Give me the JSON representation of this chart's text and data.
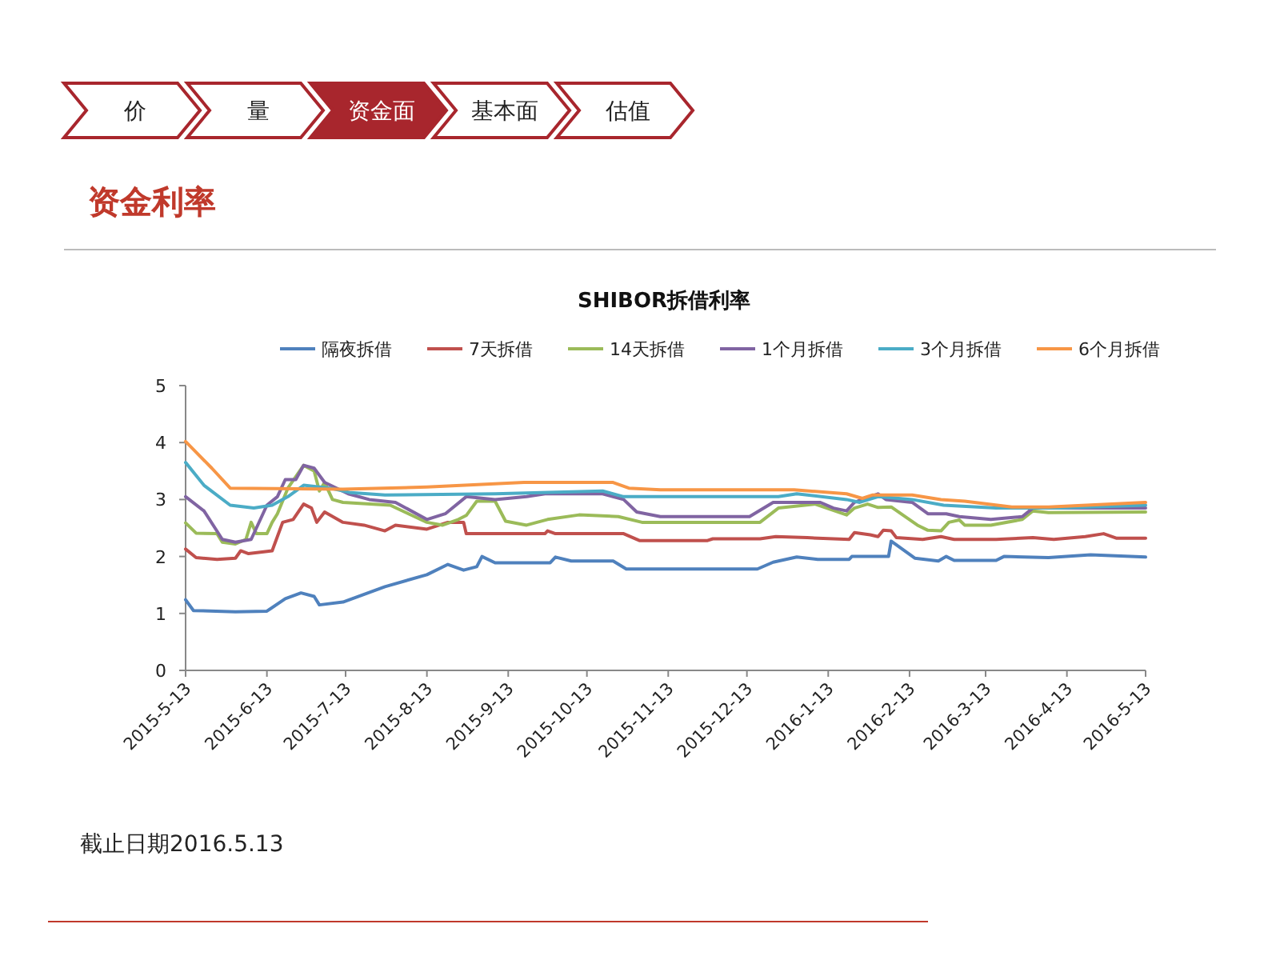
{
  "chart_data": {
    "type": "line",
    "title": "SHIBOR拆借利率",
    "annotations": [
      "价",
      "量",
      "资金面",
      "基本面",
      "估值",
      "资金利率",
      "截止日期2016.5.13"
    ],
    "xlim": [
      "2015-05-13",
      "2016-05-13"
    ],
    "xticks": [
      {
        "value": "2015-05-13",
        "label": "2015-5-13"
      },
      {
        "value": "2015-06-13",
        "label": "2015-6-13"
      },
      {
        "value": "2015-07-13",
        "label": "2015-7-13"
      },
      {
        "value": "2015-08-13",
        "label": "2015-8-13"
      },
      {
        "value": "2015-09-13",
        "label": "2015-9-13"
      },
      {
        "value": "2015-10-13",
        "label": "2015-10-13"
      },
      {
        "value": "2015-11-13",
        "label": "2015-11-13"
      },
      {
        "value": "2015-12-13",
        "label": "2015-12-13"
      },
      {
        "value": "2016-01-13",
        "label": "2016-1-13"
      },
      {
        "value": "2016-02-13",
        "label": "2016-2-13"
      },
      {
        "value": "2016-03-13",
        "label": "2016-3-13"
      },
      {
        "value": "2016-04-13",
        "label": "2016-4-13"
      },
      {
        "value": "2016-05-13",
        "label": "2016-5-13"
      }
    ],
    "ylim": [
      0,
      5
    ],
    "yticks": [
      0,
      1,
      2,
      3,
      4,
      5
    ],
    "grid": false,
    "legend": "top",
    "marker": "none",
    "line_style": "solid",
    "series": [
      {
        "name": "隔夜拆借",
        "color": "#4f81bd",
        "x": [
          "2015-05-13",
          "2015-05-16",
          "2015-06-01",
          "2015-06-13",
          "2015-06-20",
          "2015-06-26",
          "2015-07-01",
          "2015-07-03",
          "2015-07-12",
          "2015-07-28",
          "2015-08-13",
          "2015-08-21",
          "2015-08-27",
          "2015-09-01",
          "2015-09-03",
          "2015-09-08",
          "2015-09-29",
          "2015-10-01",
          "2015-10-07",
          "2015-10-23",
          "2015-10-28",
          "2015-12-17",
          "2015-12-23",
          "2016-01-01",
          "2016-01-09",
          "2016-01-21",
          "2016-01-22",
          "2016-02-05",
          "2016-02-06",
          "2016-02-15",
          "2016-02-24",
          "2016-02-27",
          "2016-03-01",
          "2016-03-17",
          "2016-03-20",
          "2016-04-06",
          "2016-04-22",
          "2016-05-13"
        ],
        "values": [
          1.24,
          1.05,
          1.03,
          1.04,
          1.26,
          1.36,
          1.3,
          1.15,
          1.2,
          1.47,
          1.68,
          1.86,
          1.76,
          1.82,
          2.0,
          1.89,
          1.89,
          1.99,
          1.92,
          1.92,
          1.78,
          1.78,
          1.9,
          1.99,
          1.95,
          1.95,
          2.0,
          2.0,
          2.27,
          1.97,
          1.92,
          2.0,
          1.93,
          1.93,
          2.0,
          1.98,
          2.03,
          1.99
        ]
      },
      {
        "name": "7天拆借",
        "color": "#c0504d",
        "x": [
          "2015-05-13",
          "2015-05-17",
          "2015-05-25",
          "2015-06-01",
          "2015-06-03",
          "2015-06-06",
          "2015-06-15",
          "2015-06-19",
          "2015-06-23",
          "2015-06-27",
          "2015-06-30",
          "2015-07-02",
          "2015-07-05",
          "2015-07-12",
          "2015-07-20",
          "2015-07-28",
          "2015-08-01",
          "2015-08-13",
          "2015-08-21",
          "2015-08-27",
          "2015-08-28",
          "2015-09-27",
          "2015-09-28",
          "2015-10-01",
          "2015-10-27",
          "2015-11-02",
          "2015-11-28",
          "2015-11-30",
          "2015-12-18",
          "2015-12-24",
          "2016-01-05",
          "2016-01-21",
          "2016-01-23",
          "2016-01-29",
          "2016-02-01",
          "2016-02-03",
          "2016-02-06",
          "2016-02-08",
          "2016-02-18",
          "2016-02-25",
          "2016-03-01",
          "2016-03-17",
          "2016-03-31",
          "2016-04-08",
          "2016-04-20",
          "2016-04-27",
          "2016-05-02",
          "2016-05-13"
        ],
        "values": [
          2.13,
          1.98,
          1.95,
          1.97,
          2.1,
          2.05,
          2.1,
          2.6,
          2.65,
          2.92,
          2.85,
          2.6,
          2.78,
          2.6,
          2.55,
          2.45,
          2.55,
          2.48,
          2.6,
          2.6,
          2.4,
          2.4,
          2.45,
          2.4,
          2.4,
          2.28,
          2.28,
          2.31,
          2.31,
          2.35,
          2.33,
          2.3,
          2.42,
          2.38,
          2.35,
          2.46,
          2.45,
          2.33,
          2.3,
          2.35,
          2.3,
          2.3,
          2.33,
          2.3,
          2.35,
          2.4,
          2.32,
          2.32
        ]
      },
      {
        "name": "14天拆借",
        "color": "#9bbb59",
        "x": [
          "2015-05-13",
          "2015-05-17",
          "2015-05-25",
          "2015-05-27",
          "2015-06-01",
          "2015-06-05",
          "2015-06-07",
          "2015-06-09",
          "2015-06-13",
          "2015-06-15",
          "2015-06-17",
          "2015-06-21",
          "2015-06-27",
          "2015-07-01",
          "2015-07-03",
          "2015-07-05",
          "2015-07-08",
          "2015-07-12",
          "2015-07-30",
          "2015-08-06",
          "2015-08-13",
          "2015-08-19",
          "2015-08-25",
          "2015-08-28",
          "2015-09-01",
          "2015-09-08",
          "2015-09-12",
          "2015-09-20",
          "2015-09-28",
          "2015-10-10",
          "2015-10-25",
          "2015-11-03",
          "2015-12-18",
          "2015-12-25",
          "2016-01-08",
          "2016-01-20",
          "2016-01-23",
          "2016-01-28",
          "2016-02-01",
          "2016-02-06",
          "2016-02-16",
          "2016-02-20",
          "2016-02-25",
          "2016-02-28",
          "2016-03-03",
          "2016-03-05",
          "2016-03-15",
          "2016-03-27",
          "2016-03-31",
          "2016-04-06",
          "2016-05-13"
        ],
        "values": [
          2.59,
          2.41,
          2.4,
          2.25,
          2.22,
          2.3,
          2.6,
          2.4,
          2.4,
          2.6,
          2.75,
          3.2,
          3.6,
          3.5,
          3.15,
          3.3,
          3.0,
          2.95,
          2.9,
          2.75,
          2.6,
          2.55,
          2.65,
          2.72,
          2.97,
          2.97,
          2.62,
          2.55,
          2.65,
          2.73,
          2.7,
          2.6,
          2.6,
          2.85,
          2.92,
          2.73,
          2.85,
          2.92,
          2.86,
          2.87,
          2.55,
          2.46,
          2.45,
          2.6,
          2.64,
          2.55,
          2.55,
          2.65,
          2.8,
          2.77,
          2.78
        ]
      },
      {
        "name": "1个月拆借",
        "color": "#8064a2",
        "x": [
          "2015-05-13",
          "2015-05-20",
          "2015-05-27",
          "2015-06-01",
          "2015-06-07",
          "2015-06-13",
          "2015-06-17",
          "2015-06-20",
          "2015-06-24",
          "2015-06-27",
          "2015-07-01",
          "2015-07-05",
          "2015-07-14",
          "2015-07-22",
          "2015-08-01",
          "2015-08-13",
          "2015-08-20",
          "2015-08-28",
          "2015-09-08",
          "2015-09-20",
          "2015-09-27",
          "2015-10-19",
          "2015-10-27",
          "2015-11-01",
          "2015-11-10",
          "2015-12-14",
          "2015-12-23",
          "2016-01-10",
          "2016-01-15",
          "2016-01-20",
          "2016-01-23",
          "2016-02-01",
          "2016-02-04",
          "2016-02-14",
          "2016-02-20",
          "2016-02-27",
          "2016-03-03",
          "2016-03-15",
          "2016-03-27",
          "2016-03-31",
          "2016-05-13"
        ],
        "values": [
          3.05,
          2.8,
          2.3,
          2.25,
          2.3,
          2.9,
          3.05,
          3.35,
          3.35,
          3.6,
          3.55,
          3.3,
          3.1,
          3.0,
          2.95,
          2.65,
          2.75,
          3.05,
          3.0,
          3.05,
          3.1,
          3.1,
          3.0,
          2.78,
          2.7,
          2.7,
          2.95,
          2.95,
          2.85,
          2.8,
          2.95,
          3.1,
          3.0,
          2.95,
          2.75,
          2.75,
          2.7,
          2.65,
          2.7,
          2.85,
          2.85
        ]
      },
      {
        "name": "3个月拆借",
        "color": "#4bacc6",
        "x": [
          "2015-05-13",
          "2015-05-20",
          "2015-05-30",
          "2015-06-08",
          "2015-06-15",
          "2015-06-21",
          "2015-06-27",
          "2015-07-07",
          "2015-07-15",
          "2015-07-28",
          "2015-09-08",
          "2015-10-19",
          "2015-10-27",
          "2015-12-25",
          "2016-01-01",
          "2016-01-20",
          "2016-01-25",
          "2016-02-01",
          "2016-02-14",
          "2016-02-26",
          "2016-03-17",
          "2016-04-10",
          "2016-05-13"
        ],
        "values": [
          3.65,
          3.25,
          2.9,
          2.85,
          2.9,
          3.05,
          3.25,
          3.2,
          3.12,
          3.08,
          3.1,
          3.15,
          3.05,
          3.05,
          3.1,
          3.0,
          2.95,
          3.05,
          3.0,
          2.9,
          2.85,
          2.85,
          2.9
        ]
      },
      {
        "name": "6个月拆借",
        "color": "#f79646",
        "x": [
          "2015-05-13",
          "2015-05-23",
          "2015-05-30",
          "2015-07-12",
          "2015-08-13",
          "2015-09-19",
          "2015-10-23",
          "2015-10-29",
          "2015-11-10",
          "2015-12-31",
          "2016-01-20",
          "2016-01-26",
          "2016-01-30",
          "2016-02-14",
          "2016-02-25",
          "2016-03-05",
          "2016-03-23",
          "2016-04-06",
          "2016-05-13"
        ],
        "values": [
          4.02,
          3.55,
          3.2,
          3.18,
          3.22,
          3.3,
          3.3,
          3.2,
          3.17,
          3.17,
          3.1,
          3.02,
          3.08,
          3.08,
          3.0,
          2.97,
          2.87,
          2.87,
          2.95
        ]
      }
    ]
  }
}
